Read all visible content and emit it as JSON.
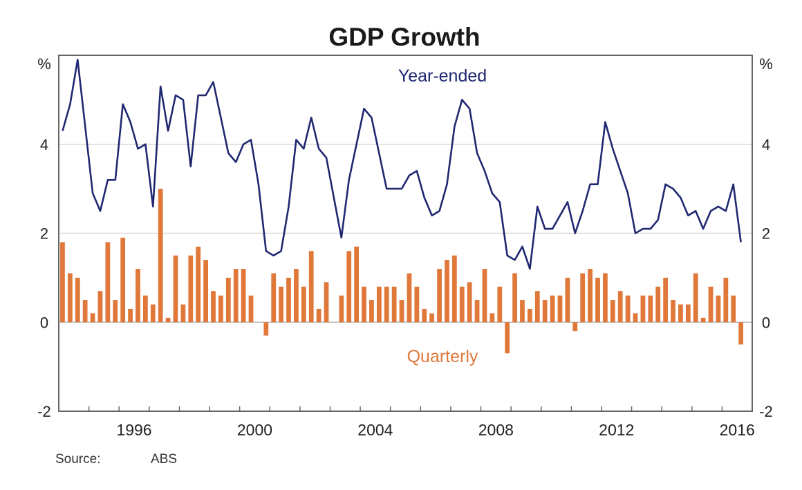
{
  "chart_data": {
    "type": "bar+line",
    "title": "GDP Growth",
    "unit_left": "%",
    "unit_right": "%",
    "ylim": [
      -2,
      6
    ],
    "yticks": [
      -2,
      0,
      2,
      4
    ],
    "ytick_labels": [
      "-2",
      "0",
      "2",
      "4"
    ],
    "xlim": [
      1994,
      2017
    ],
    "xtick_labels": [
      "1996",
      "2000",
      "2004",
      "2008",
      "2012",
      "2016"
    ],
    "grid": "horizontal",
    "source_label": "Source:",
    "source_value": "ABS",
    "colors": {
      "year_ended": "#1f2870",
      "quarterly": "#e0783a",
      "grid": "#d9d9d9",
      "axis": "#555555"
    },
    "categories": [
      "1994Q1",
      "1994Q2",
      "1994Q3",
      "1994Q4",
      "1995Q1",
      "1995Q2",
      "1995Q3",
      "1995Q4",
      "1996Q1",
      "1996Q2",
      "1996Q3",
      "1996Q4",
      "1997Q1",
      "1997Q2",
      "1997Q3",
      "1997Q4",
      "1998Q1",
      "1998Q2",
      "1998Q3",
      "1998Q4",
      "1999Q1",
      "1999Q2",
      "1999Q3",
      "1999Q4",
      "2000Q1",
      "2000Q2",
      "2000Q3",
      "2000Q4",
      "2001Q1",
      "2001Q2",
      "2001Q3",
      "2001Q4",
      "2002Q1",
      "2002Q2",
      "2002Q3",
      "2002Q4",
      "2003Q1",
      "2003Q2",
      "2003Q3",
      "2003Q4",
      "2004Q1",
      "2004Q2",
      "2004Q3",
      "2004Q4",
      "2005Q1",
      "2005Q2",
      "2005Q3",
      "2005Q4",
      "2006Q1",
      "2006Q2",
      "2006Q3",
      "2006Q4",
      "2007Q1",
      "2007Q2",
      "2007Q3",
      "2007Q4",
      "2008Q1",
      "2008Q2",
      "2008Q3",
      "2008Q4",
      "2009Q1",
      "2009Q2",
      "2009Q3",
      "2009Q4",
      "2010Q1",
      "2010Q2",
      "2010Q3",
      "2010Q4",
      "2011Q1",
      "2011Q2",
      "2011Q3",
      "2011Q4",
      "2012Q1",
      "2012Q2",
      "2012Q3",
      "2012Q4",
      "2013Q1",
      "2013Q2",
      "2013Q3",
      "2013Q4",
      "2014Q1",
      "2014Q2",
      "2014Q3",
      "2014Q4",
      "2015Q1",
      "2015Q2",
      "2015Q3",
      "2015Q4",
      "2016Q1",
      "2016Q2",
      "2016Q3"
    ],
    "series": [
      {
        "name": "Year-ended",
        "type": "line",
        "values": [
          4.3,
          4.9,
          5.9,
          4.4,
          2.9,
          2.5,
          3.2,
          3.2,
          4.9,
          4.5,
          3.9,
          4.0,
          2.6,
          5.3,
          4.3,
          5.1,
          5.0,
          3.5,
          5.1,
          5.1,
          5.4,
          4.6,
          3.8,
          3.6,
          4.0,
          4.1,
          3.1,
          1.6,
          1.5,
          1.6,
          2.6,
          4.1,
          3.9,
          4.6,
          3.9,
          3.7,
          2.8,
          1.9,
          3.2,
          4.0,
          4.8,
          4.6,
          3.8,
          3.0,
          3.0,
          3.0,
          3.3,
          3.4,
          2.8,
          2.4,
          2.5,
          3.1,
          4.4,
          5.0,
          4.8,
          3.8,
          3.4,
          2.9,
          2.7,
          1.5,
          1.4,
          1.7,
          1.2,
          2.6,
          2.1,
          2.1,
          2.4,
          2.7,
          2.0,
          2.5,
          3.1,
          3.1,
          4.5,
          3.9,
          3.4,
          2.9,
          2.0,
          2.1,
          2.1,
          2.3,
          3.1,
          3.0,
          2.8,
          2.4,
          2.5,
          2.1,
          2.5,
          2.6,
          2.5,
          3.1,
          1.8
        ]
      },
      {
        "name": "Quarterly",
        "type": "bar",
        "values": [
          1.8,
          1.1,
          1.0,
          0.5,
          0.2,
          0.7,
          1.8,
          0.5,
          1.9,
          0.3,
          1.2,
          0.6,
          0.4,
          3.0,
          0.1,
          1.5,
          0.4,
          1.5,
          1.7,
          1.4,
          0.7,
          0.6,
          1.0,
          1.2,
          1.2,
          0.6,
          0.0,
          -0.3,
          1.1,
          0.8,
          1.0,
          1.2,
          0.8,
          1.6,
          0.3,
          0.9,
          0.0,
          0.6,
          1.6,
          1.7,
          0.8,
          0.5,
          0.8,
          0.8,
          0.8,
          0.5,
          1.1,
          0.8,
          0.3,
          0.2,
          1.2,
          1.4,
          1.5,
          0.8,
          0.9,
          0.5,
          1.2,
          0.2,
          0.8,
          -0.7,
          1.1,
          0.5,
          0.3,
          0.7,
          0.5,
          0.6,
          0.6,
          1.0,
          -0.2,
          1.1,
          1.2,
          1.0,
          1.1,
          0.5,
          0.7,
          0.6,
          0.2,
          0.6,
          0.6,
          0.8,
          1.0,
          0.5,
          0.4,
          0.4,
          1.1,
          0.1,
          0.8,
          0.6,
          1.0,
          0.6,
          -0.5
        ]
      }
    ]
  }
}
